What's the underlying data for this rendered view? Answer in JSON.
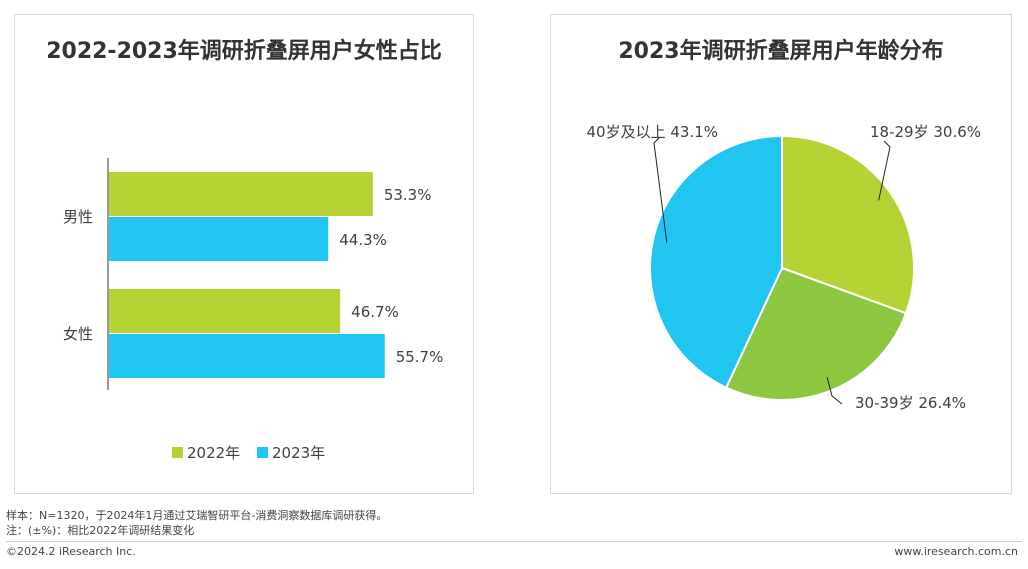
{
  "colors": {
    "green": "#b5d334",
    "cyan": "#20c6f0",
    "midgreen": "#8dc63f",
    "axis": "#333333",
    "text": "#404040"
  },
  "chart_data": [
    {
      "type": "bar",
      "orientation": "horizontal",
      "title": "2022-2023年调研折叠屏用户女性占比",
      "categories": [
        "男性",
        "女性"
      ],
      "series": [
        {
          "name": "2022年",
          "values": [
            53.3,
            46.7
          ],
          "labels": [
            "53.3%",
            "46.7%"
          ]
        },
        {
          "name": "2023年",
          "values": [
            44.3,
            55.7
          ],
          "labels": [
            "44.3%",
            "55.7%"
          ]
        }
      ],
      "xlim": [
        0,
        60
      ],
      "legend": "bottom",
      "grid": false
    },
    {
      "type": "pie",
      "title": "2023年调研折叠屏用户年龄分布",
      "slices": [
        {
          "name": "18-29岁",
          "value": 30.6,
          "label": "18-29岁 30.6%"
        },
        {
          "name": "30-39岁",
          "value": 26.4,
          "label": "30-39岁 26.4%"
        },
        {
          "name": "40岁及以上",
          "value": 43.1,
          "label": "40岁及以上 43.1%"
        }
      ]
    }
  ],
  "notes": {
    "sample": "样本：N=1320，于2024年1月通过艾瑞智研平台-消费洞察数据库调研获得。",
    "remark": "注：(±%)：相比2022年调研结果变化"
  },
  "footer": {
    "copyright": "©2024.2 iResearch Inc.",
    "website": "www.iresearch.com.cn"
  }
}
